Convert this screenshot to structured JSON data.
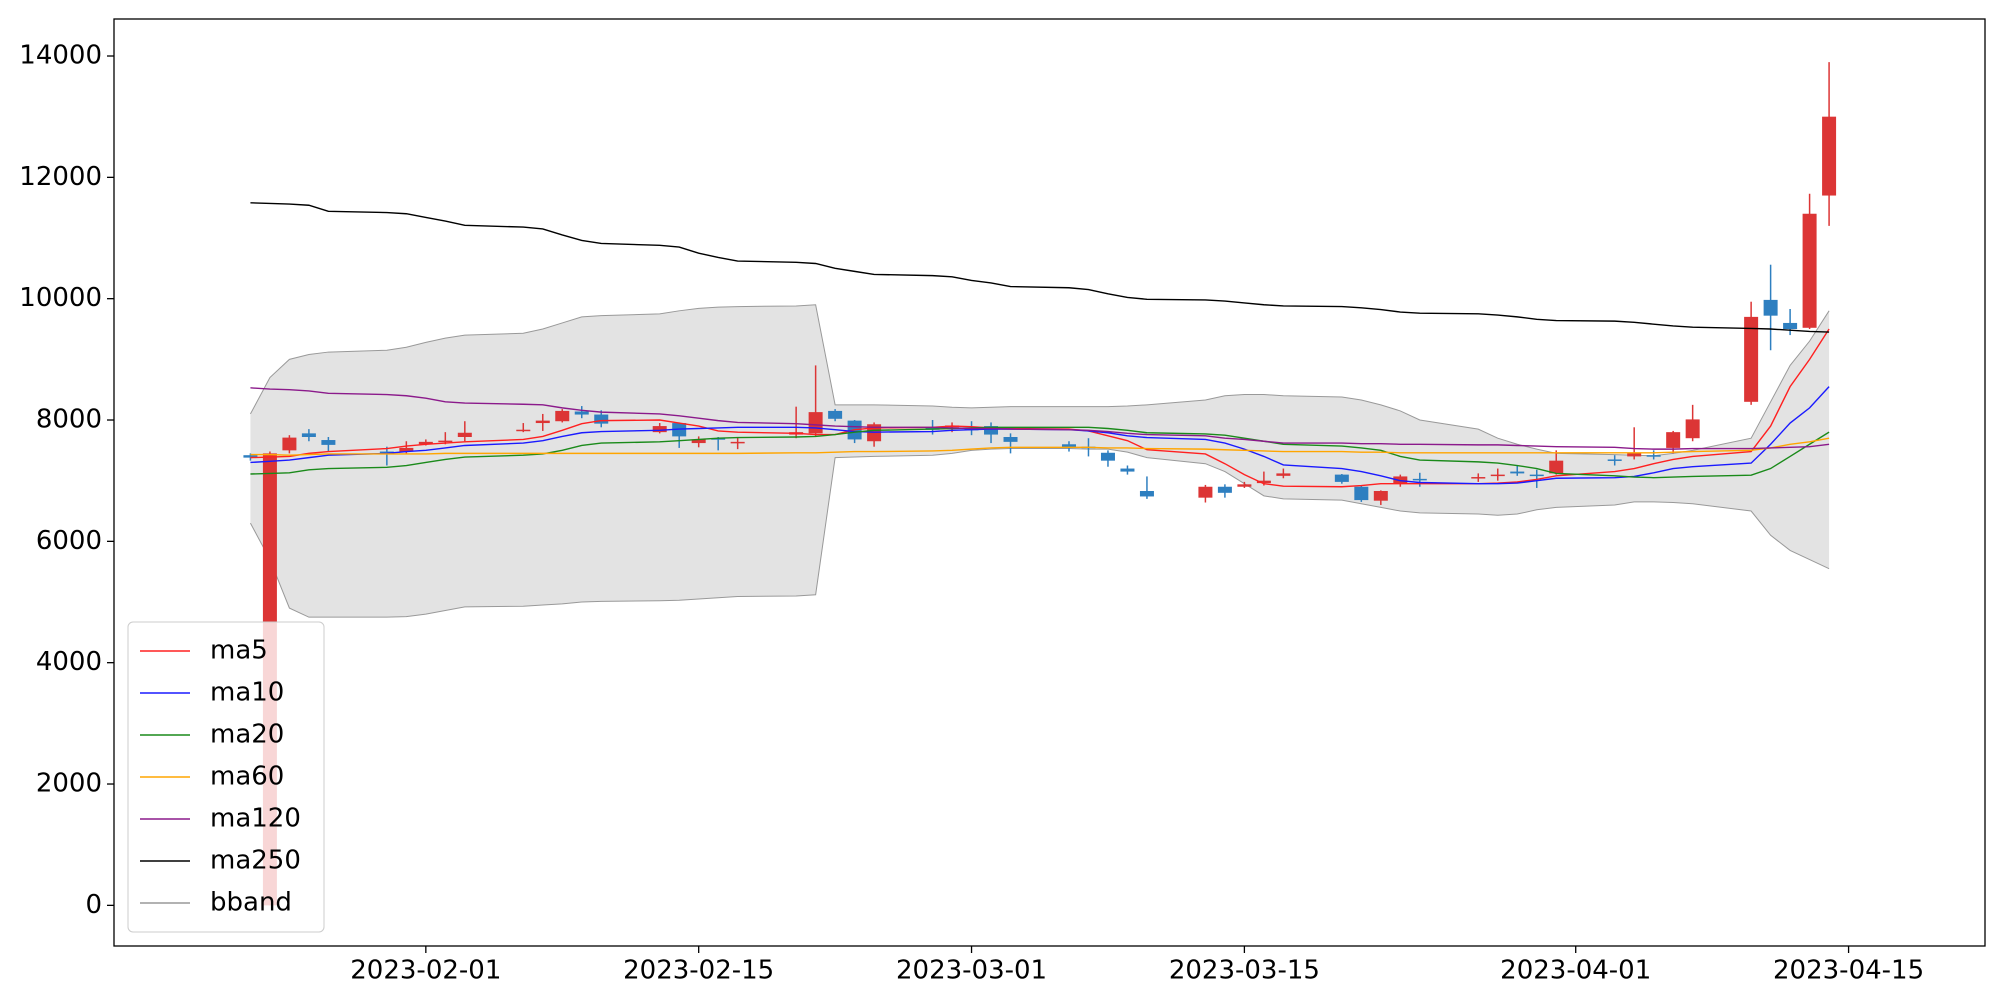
{
  "chart_data": {
    "type": "candlestick",
    "x": [
      "2023-01-23",
      "2023-01-24",
      "2023-01-25",
      "2023-01-26",
      "2023-01-27",
      "2023-01-30",
      "2023-01-31",
      "2023-02-01",
      "2023-02-02",
      "2023-02-03",
      "2023-02-06",
      "2023-02-07",
      "2023-02-08",
      "2023-02-09",
      "2023-02-10",
      "2023-02-13",
      "2023-02-14",
      "2023-02-15",
      "2023-02-16",
      "2023-02-17",
      "2023-02-20",
      "2023-02-21",
      "2023-02-22",
      "2023-02-23",
      "2023-02-24",
      "2023-02-27",
      "2023-02-28",
      "2023-03-01",
      "2023-03-02",
      "2023-03-03",
      "2023-03-06",
      "2023-03-07",
      "2023-03-08",
      "2023-03-09",
      "2023-03-10",
      "2023-03-13",
      "2023-03-14",
      "2023-03-15",
      "2023-03-16",
      "2023-03-17",
      "2023-03-20",
      "2023-03-21",
      "2023-03-22",
      "2023-03-23",
      "2023-03-24",
      "2023-03-27",
      "2023-03-28",
      "2023-03-29",
      "2023-03-30",
      "2023-03-31",
      "2023-04-03",
      "2023-04-04",
      "2023-04-05",
      "2023-04-06",
      "2023-04-07",
      "2023-04-10",
      "2023-04-11",
      "2023-04-12",
      "2023-04-13",
      "2023-04-14"
    ],
    "open": [
      7420,
      0,
      7500,
      7780,
      7670,
      7480,
      7480,
      7600,
      7640,
      7720,
      7820,
      7950,
      7980,
      8140,
      8090,
      7800,
      7950,
      7620,
      7700,
      7620,
      7760,
      7780,
      8150,
      7990,
      7650,
      7880,
      7880,
      7860,
      7900,
      7720,
      7600,
      7560,
      7460,
      7200,
      6830,
      6720,
      6900,
      6900,
      6960,
      7080,
      7100,
      6900,
      6670,
      6950,
      7030,
      7040,
      7080,
      7150,
      7100,
      7120,
      7350,
      7400,
      7420,
      7540,
      7700,
      8300,
      9980,
      9600,
      9520,
      11700
    ],
    "high": [
      7450,
      7480,
      7750,
      7850,
      7720,
      7560,
      7650,
      7680,
      7800,
      7980,
      7950,
      8100,
      8180,
      8230,
      8160,
      7950,
      7960,
      7730,
      7720,
      7720,
      8220,
      8900,
      8180,
      8000,
      7960,
      8000,
      7960,
      7980,
      7960,
      7780,
      7650,
      7700,
      7500,
      7250,
      7070,
      6930,
      6940,
      6980,
      7150,
      7200,
      7110,
      6920,
      6840,
      7100,
      7130,
      7120,
      7200,
      7250,
      7180,
      7500,
      7420,
      7880,
      7500,
      7820,
      8250,
      9950,
      10560,
      9830,
      11730,
      13900
    ],
    "low": [
      7330,
      0,
      7450,
      7650,
      7480,
      7250,
      7450,
      7580,
      7600,
      7650,
      7800,
      7820,
      7960,
      8030,
      7880,
      7780,
      7540,
      7550,
      7500,
      7520,
      7700,
      7720,
      7980,
      7620,
      7560,
      7760,
      7800,
      7750,
      7620,
      7450,
      7480,
      7400,
      7230,
      7100,
      6700,
      6640,
      6720,
      6880,
      6920,
      7040,
      6950,
      6650,
      6600,
      6900,
      6900,
      6980,
      7000,
      7080,
      6880,
      7100,
      7250,
      7350,
      7350,
      7450,
      7650,
      8250,
      9150,
      9400,
      9500,
      11200
    ],
    "close": [
      7380,
      7450,
      7710,
      7720,
      7590,
      7470,
      7540,
      7640,
      7660,
      7790,
      7840,
      7990,
      8150,
      8090,
      7940,
      7900,
      7730,
      7680,
      7690,
      7640,
      7800,
      8130,
      8020,
      7680,
      7930,
      7840,
      7910,
      7830,
      7760,
      7640,
      7550,
      7540,
      7330,
      7150,
      6740,
      6900,
      6800,
      6940,
      7000,
      7120,
      6980,
      6680,
      6830,
      7070,
      7020,
      7060,
      7100,
      7120,
      7090,
      7330,
      7330,
      7450,
      7400,
      7800,
      8010,
      9700,
      9720,
      9500,
      11400,
      13000
    ],
    "up_color": "#dc3535",
    "down_color": "#2e7fc0",
    "lines": [
      {
        "name": "ma5",
        "color": "#ff2020",
        "values": [
          7380,
          7390,
          7400,
          7450,
          7480,
          7530,
          7570,
          7600,
          7620,
          7640,
          7680,
          7730,
          7830,
          7940,
          7990,
          8000,
          7950,
          7900,
          7820,
          7800,
          7780,
          7760,
          7760,
          7840,
          7870,
          7880,
          7900,
          7890,
          7870,
          7860,
          7850,
          7820,
          7740,
          7660,
          7510,
          7440,
          7280,
          7100,
          6950,
          6910,
          6900,
          6920,
          6950,
          6950,
          6950,
          6950,
          6960,
          6980,
          7020,
          7080,
          7150,
          7200,
          7280,
          7350,
          7400,
          7480,
          7900,
          8550,
          9000,
          9500
        ]
      },
      {
        "name": "ma10",
        "color": "#1a1aff",
        "values": [
          7300,
          7320,
          7340,
          7380,
          7420,
          7450,
          7480,
          7500,
          7540,
          7580,
          7620,
          7660,
          7730,
          7790,
          7810,
          7830,
          7850,
          7860,
          7870,
          7880,
          7880,
          7870,
          7840,
          7810,
          7800,
          7810,
          7830,
          7840,
          7850,
          7850,
          7840,
          7820,
          7790,
          7740,
          7710,
          7680,
          7620,
          7520,
          7400,
          7260,
          7200,
          7150,
          7080,
          7000,
          6970,
          6950,
          6950,
          6960,
          7000,
          7040,
          7050,
          7070,
          7130,
          7200,
          7230,
          7290,
          7600,
          7950,
          8200,
          8550
        ]
      },
      {
        "name": "ma20",
        "color": "#1a8a1a",
        "values": [
          7110,
          7120,
          7130,
          7180,
          7200,
          7220,
          7250,
          7300,
          7350,
          7390,
          7420,
          7440,
          7500,
          7580,
          7620,
          7640,
          7660,
          7680,
          7700,
          7710,
          7720,
          7730,
          7760,
          7800,
          7830,
          7850,
          7860,
          7870,
          7880,
          7880,
          7880,
          7880,
          7860,
          7830,
          7790,
          7770,
          7750,
          7700,
          7650,
          7600,
          7570,
          7540,
          7500,
          7400,
          7340,
          7310,
          7290,
          7250,
          7200,
          7120,
          7080,
          7060,
          7050,
          7060,
          7070,
          7090,
          7200,
          7400,
          7600,
          7800
        ]
      },
      {
        "name": "ma60",
        "color": "#ffa500",
        "values": [
          7430,
          7430,
          7420,
          7430,
          7440,
          7440,
          7440,
          7440,
          7450,
          7450,
          7450,
          7450,
          7450,
          7450,
          7450,
          7450,
          7450,
          7450,
          7450,
          7450,
          7460,
          7460,
          7470,
          7480,
          7480,
          7490,
          7500,
          7520,
          7540,
          7550,
          7550,
          7550,
          7540,
          7540,
          7530,
          7520,
          7510,
          7500,
          7490,
          7480,
          7480,
          7470,
          7470,
          7460,
          7460,
          7460,
          7460,
          7460,
          7460,
          7460,
          7460,
          7460,
          7460,
          7470,
          7480,
          7500,
          7540,
          7600,
          7640,
          7700
        ]
      },
      {
        "name": "ma120",
        "color": "#8b1a8b",
        "values": [
          8530,
          8510,
          8500,
          8480,
          8440,
          8420,
          8400,
          8360,
          8300,
          8280,
          8260,
          8250,
          8200,
          8160,
          8130,
          8100,
          8070,
          8030,
          7990,
          7960,
          7940,
          7920,
          7900,
          7890,
          7880,
          7880,
          7870,
          7860,
          7860,
          7850,
          7840,
          7830,
          7810,
          7780,
          7760,
          7740,
          7700,
          7680,
          7650,
          7620,
          7620,
          7610,
          7610,
          7600,
          7600,
          7590,
          7590,
          7580,
          7570,
          7560,
          7550,
          7530,
          7520,
          7520,
          7530,
          7530,
          7540,
          7550,
          7560,
          7600
        ]
      },
      {
        "name": "ma250",
        "color": "#000000",
        "values": [
          11580,
          11570,
          11560,
          11540,
          11440,
          11420,
          11400,
          11340,
          11280,
          11210,
          11180,
          11150,
          11050,
          10960,
          10910,
          10880,
          10850,
          10750,
          10680,
          10620,
          10600,
          10580,
          10500,
          10450,
          10400,
          10380,
          10360,
          10300,
          10260,
          10200,
          10180,
          10150,
          10080,
          10020,
          9990,
          9980,
          9960,
          9930,
          9900,
          9880,
          9870,
          9850,
          9820,
          9780,
          9760,
          9750,
          9730,
          9700,
          9660,
          9640,
          9630,
          9610,
          9580,
          9550,
          9530,
          9510,
          9500,
          9480,
          9460,
          9450
        ]
      }
    ],
    "bband": {
      "name": "bband",
      "color": "#999999",
      "fill": "#e3e3e3",
      "upper": [
        8100,
        8700,
        9000,
        9080,
        9120,
        9150,
        9200,
        9280,
        9350,
        9400,
        9430,
        9500,
        9600,
        9700,
        9720,
        9750,
        9800,
        9840,
        9860,
        9870,
        9880,
        9900,
        8250,
        8250,
        8250,
        8230,
        8210,
        8200,
        8210,
        8220,
        8220,
        8220,
        8220,
        8230,
        8250,
        8330,
        8400,
        8420,
        8420,
        8400,
        8380,
        8330,
        8250,
        8150,
        8000,
        7850,
        7700,
        7600,
        7520,
        7450,
        7430,
        7420,
        7410,
        7450,
        7500,
        7700,
        8300,
        8900,
        9300,
        9800
      ],
      "lower": [
        6300,
        5700,
        4900,
        4750,
        4750,
        4750,
        4760,
        4800,
        4860,
        4920,
        4930,
        4950,
        4970,
        5000,
        5010,
        5020,
        5030,
        5050,
        5070,
        5090,
        5100,
        5120,
        7380,
        7390,
        7400,
        7420,
        7450,
        7500,
        7520,
        7530,
        7530,
        7520,
        7520,
        7470,
        7380,
        7280,
        7150,
        6950,
        6750,
        6700,
        6680,
        6620,
        6560,
        6500,
        6470,
        6450,
        6430,
        6450,
        6520,
        6560,
        6600,
        6650,
        6650,
        6640,
        6620,
        6500,
        6100,
        5850,
        5700,
        5550
      ]
    },
    "xlim": [
      "2023-01-16",
      "2023-04-22"
    ],
    "xticks": [
      "2023-02-01",
      "2023-02-15",
      "2023-03-01",
      "2023-03-15",
      "2023-04-01",
      "2023-04-15"
    ],
    "ylim": [
      -670,
      14610
    ],
    "yticks": [
      0,
      2000,
      4000,
      6000,
      8000,
      10000,
      12000,
      14000
    ],
    "legend": "lower left"
  }
}
